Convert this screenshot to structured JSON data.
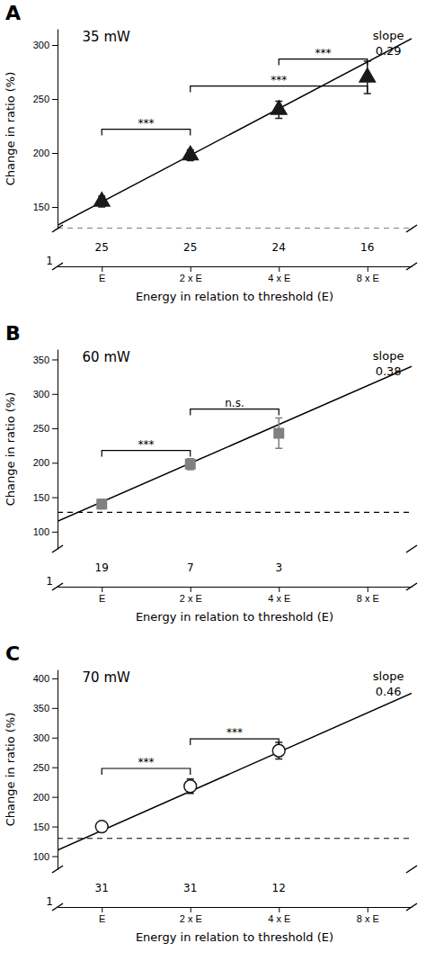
{
  "chart_data": [
    {
      "type": "scatter",
      "panel_label": "A",
      "title": "35 mW",
      "slope_text": [
        "slope",
        "0.29"
      ],
      "xlabel": "Energy in relation to threshold (E)",
      "ylabel": "Change in ratio (%)",
      "xlim": [
        0.5,
        4.5
      ],
      "xticks": [
        {
          "value": 1,
          "label": "E"
        },
        {
          "value": 2,
          "label": "2 x E"
        },
        {
          "value": 3,
          "label": "4 x E"
        },
        {
          "value": 4,
          "label": "8 x E"
        }
      ],
      "ylim": [
        130,
        315
      ],
      "yticks": [
        150,
        200,
        250,
        300
      ],
      "series": [
        {
          "type": "scatter",
          "marker": "triangle",
          "color": "#1a1a1a",
          "x": [
            1,
            2,
            3,
            4
          ],
          "values": [
            155,
            198,
            240,
            270
          ],
          "errors": [
            5,
            5,
            8,
            15
          ]
        },
        {
          "type": "line",
          "color": "#000000",
          "x": [
            0.5,
            4.5
          ],
          "values": [
            133,
            306
          ]
        }
      ],
      "reference_line": {
        "y": 130,
        "line_style": "dashed"
      },
      "brackets": [
        {
          "x1": 1,
          "x2": 2,
          "y": 222,
          "label": "***"
        },
        {
          "x1": 2,
          "x2": 4,
          "y": 262,
          "label": "***"
        },
        {
          "x1": 3,
          "x2": 4,
          "y": 287,
          "label": "***"
        }
      ],
      "n_values": [
        "25",
        "25",
        "24",
        "16"
      ],
      "axis_break_label": "1"
    },
    {
      "type": "scatter",
      "panel_label": "B",
      "title": "60 mW",
      "slope_text": [
        "slope",
        "0.38"
      ],
      "xlabel": "Energy in relation to threshold (E)",
      "ylabel": "Change in ratio (%)",
      "xlim": [
        0.5,
        4.5
      ],
      "xticks": [
        {
          "value": 1,
          "label": "E"
        },
        {
          "value": 2,
          "label": "2 x E"
        },
        {
          "value": 3,
          "label": "4 x E"
        },
        {
          "value": 4,
          "label": "8 x E"
        }
      ],
      "ylim": [
        75,
        365
      ],
      "yticks": [
        100,
        150,
        200,
        250,
        300,
        350
      ],
      "series": [
        {
          "type": "scatter",
          "marker": "square",
          "color": "#808080",
          "x": [
            1,
            2,
            3
          ],
          "values": [
            140,
            198,
            243
          ],
          "errors": [
            7,
            8,
            22
          ]
        },
        {
          "type": "line",
          "color": "#000000",
          "x": [
            0.5,
            4.5
          ],
          "values": [
            115,
            340
          ]
        }
      ],
      "reference_line": {
        "y": 128,
        "line_style": "dashed"
      },
      "brackets": [
        {
          "x1": 1,
          "x2": 2,
          "y": 218,
          "label": "***"
        },
        {
          "x1": 2,
          "x2": 3,
          "y": 278,
          "label": "n.s."
        }
      ],
      "n_values": [
        "19",
        "7",
        "3"
      ],
      "axis_break_label": "1"
    },
    {
      "type": "scatter",
      "panel_label": "C",
      "title": "70 mW",
      "slope_text": [
        "slope",
        "0.46"
      ],
      "xlabel": "Energy in relation to threshold (E)",
      "ylabel": "Change in ratio (%)",
      "xlim": [
        0.5,
        4.5
      ],
      "xticks": [
        {
          "value": 1,
          "label": "E"
        },
        {
          "value": 2,
          "label": "2 x E"
        },
        {
          "value": 3,
          "label": "4 x E"
        },
        {
          "value": 4,
          "label": "8 x E"
        }
      ],
      "ylim": [
        78,
        415
      ],
      "yticks": [
        100,
        150,
        200,
        250,
        300,
        350,
        400
      ],
      "series": [
        {
          "type": "scatter",
          "marker": "open-circle",
          "color": "#1a1a1a",
          "x": [
            1,
            2,
            3
          ],
          "values": [
            150,
            218,
            278
          ],
          "errors": [
            5,
            12,
            14
          ]
        },
        {
          "type": "line",
          "color": "#000000",
          "x": [
            0.5,
            4.5
          ],
          "values": [
            110,
            375
          ]
        }
      ],
      "reference_line": {
        "y": 130,
        "line_style": "dashed"
      },
      "brackets": [
        {
          "x1": 1,
          "x2": 2,
          "y": 248,
          "label": "***"
        },
        {
          "x1": 2,
          "x2": 3,
          "y": 298,
          "label": "***"
        }
      ],
      "n_values": [
        "31",
        "31",
        "12"
      ],
      "axis_break_label": "1"
    }
  ]
}
